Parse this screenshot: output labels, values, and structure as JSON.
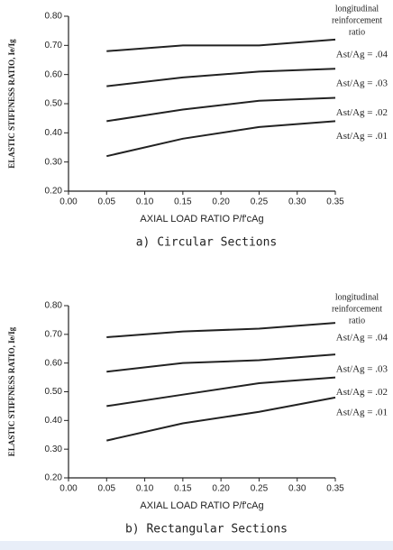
{
  "chart_data": [
    {
      "type": "line",
      "title": "a)  Circular Sections",
      "x_label": "AXIAL LOAD RATIO P/f'cAg",
      "y_label": "ELASTIC STIFFNESS RATIO, Ie/Ig",
      "legend_title": [
        "longitudinal",
        "reinforcement",
        "ratio"
      ],
      "x": [
        0.05,
        0.15,
        0.25,
        0.35
      ],
      "xlim": [
        0,
        0.35
      ],
      "ylim": [
        0.2,
        0.8
      ],
      "xticks": [
        {
          "value": 0,
          "label": "0.00"
        },
        0.05,
        {
          "value": 0.1,
          "label": "0.10"
        },
        0.15,
        {
          "value": 0.2,
          "label": "0.20"
        },
        0.25,
        {
          "value": 0.3,
          "label": "0.30"
        },
        0.35
      ],
      "yticks": [
        {
          "value": 0.2,
          "label": "0.20"
        },
        {
          "value": 0.3,
          "label": "0.30"
        },
        {
          "value": 0.4,
          "label": "0.40"
        },
        {
          "value": 0.5,
          "label": "0.50"
        },
        {
          "value": 0.6,
          "label": "0.60"
        },
        {
          "value": 0.7,
          "label": "0.70"
        },
        {
          "value": 0.8,
          "label": "0.80"
        }
      ],
      "series": [
        {
          "name": "Ast/Ag = .04",
          "color": "#222222",
          "values": [
            0.68,
            0.7,
            0.7,
            0.72
          ]
        },
        {
          "name": "Ast/Ag = .03",
          "color": "#222222",
          "values": [
            0.56,
            0.59,
            0.61,
            0.62
          ]
        },
        {
          "name": "Ast/Ag = .02",
          "color": "#222222",
          "values": [
            0.44,
            0.48,
            0.51,
            0.52
          ]
        },
        {
          "name": "Ast/Ag = .01",
          "color": "#222222",
          "values": [
            0.32,
            0.38,
            0.42,
            0.44
          ]
        }
      ]
    },
    {
      "type": "line",
      "title": "b)  Rectangular Sections",
      "x_label": "AXIAL LOAD RATIO P/f'cAg",
      "y_label": "ELASTIC STIFFNESS RATIO, Ie/Ig",
      "legend_title": [
        "longitudinal",
        "reinforcement",
        "ratio"
      ],
      "x": [
        0.05,
        0.15,
        0.25,
        0.35
      ],
      "xlim": [
        0,
        0.35
      ],
      "ylim": [
        0.2,
        0.8
      ],
      "xticks": [
        {
          "value": 0,
          "label": "0.00"
        },
        0.05,
        {
          "value": 0.1,
          "label": "0.10"
        },
        0.15,
        {
          "value": 0.2,
          "label": "0.20"
        },
        0.25,
        {
          "value": 0.3,
          "label": "0.30"
        },
        0.35
      ],
      "yticks": [
        {
          "value": 0.2,
          "label": "0.20"
        },
        {
          "value": 0.3,
          "label": "0.30"
        },
        {
          "value": 0.4,
          "label": "0.40"
        },
        {
          "value": 0.5,
          "label": "0.50"
        },
        {
          "value": 0.6,
          "label": "0.60"
        },
        {
          "value": 0.7,
          "label": "0.70"
        },
        {
          "value": 0.8,
          "label": "0.80"
        }
      ],
      "series": [
        {
          "name": "Ast/Ag = .04",
          "color": "#222222",
          "values": [
            0.69,
            0.71,
            0.72,
            0.74
          ]
        },
        {
          "name": "Ast/Ag = .03",
          "color": "#222222",
          "values": [
            0.57,
            0.6,
            0.61,
            0.63
          ]
        },
        {
          "name": "Ast/Ag = .02",
          "color": "#222222",
          "values": [
            0.45,
            0.49,
            0.53,
            0.55
          ]
        },
        {
          "name": "Ast/Ag = .01",
          "color": "#222222",
          "values": [
            0.33,
            0.39,
            0.43,
            0.48
          ]
        }
      ]
    }
  ]
}
